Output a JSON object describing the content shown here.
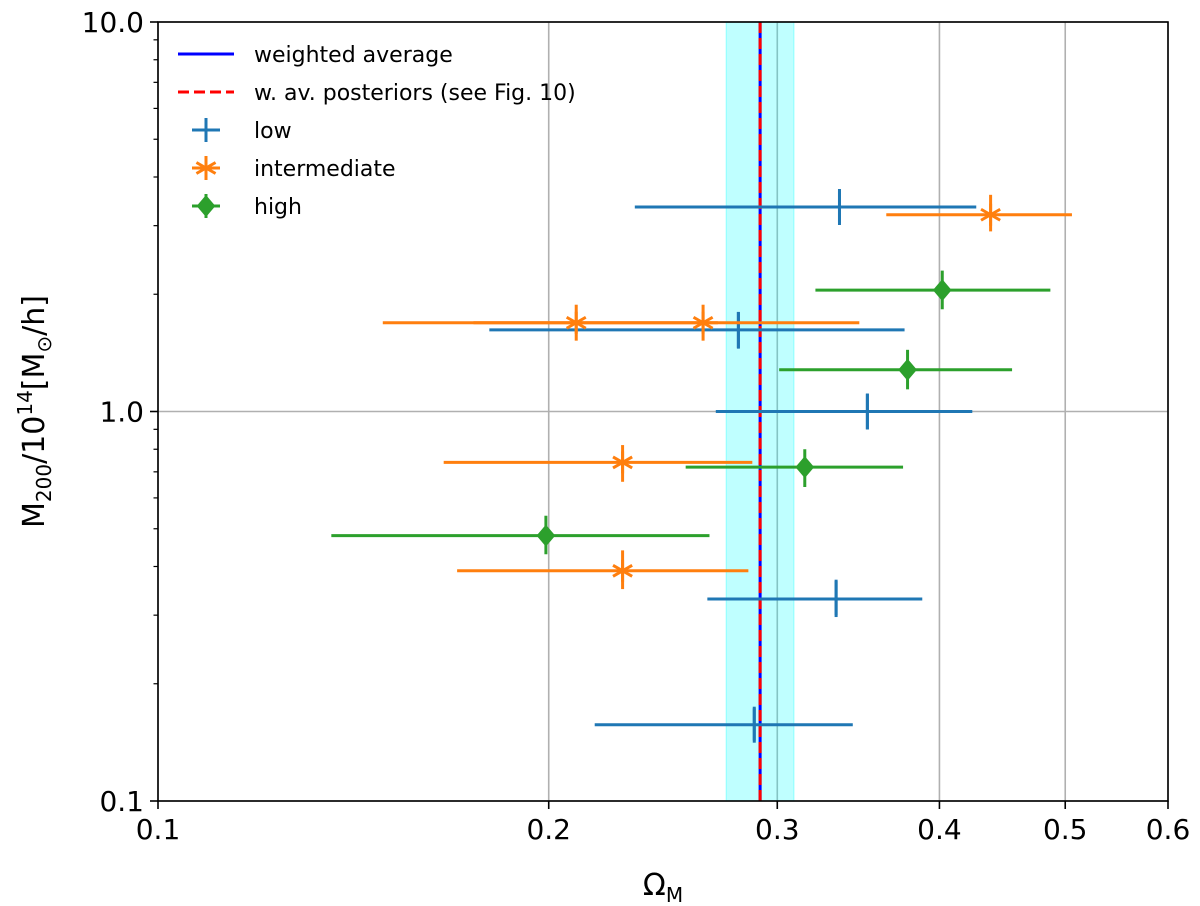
{
  "chart_data": {
    "type": "scatter",
    "title": "",
    "xscale": "log",
    "yscale": "log",
    "xlim": [
      0.1,
      0.6
    ],
    "ylim": [
      0.1,
      10.0
    ],
    "xlabel": "Ω",
    "xlabel_sub": "M",
    "ylabel_main": "M",
    "ylabel_sub": "200",
    "ylabel_mid": "/10",
    "ylabel_sup": "14",
    "ylabel_unit_open": "[M",
    "ylabel_unit_sub": "⊙",
    "ylabel_unit_close": "/h]",
    "grid": true,
    "xticks": [
      {
        "value": 0.1,
        "label": "0.1"
      },
      {
        "value": 0.2,
        "label": "0.2"
      },
      {
        "value": 0.3,
        "label": "0.3"
      },
      {
        "value": 0.4,
        "label": "0.4"
      },
      {
        "value": 0.5,
        "label": "0.5"
      },
      {
        "value": 0.6,
        "label": "0.6"
      }
    ],
    "yticks": [
      {
        "value": 0.1,
        "label": "0.1"
      },
      {
        "value": 1.0,
        "label": "1.0"
      },
      {
        "value": 10.0,
        "label": "10.0"
      }
    ],
    "weighted_average": {
      "value": 0.291,
      "band": [
        0.274,
        0.309
      ]
    },
    "legend_position": "top-left",
    "legend": [
      {
        "label": "weighted average",
        "kind": "solid-line"
      },
      {
        "label": "w. av. posteriors (see Fig. 10)",
        "kind": "dashed-line"
      },
      {
        "label": "low",
        "kind": "plus"
      },
      {
        "label": "intermediate",
        "kind": "star"
      },
      {
        "label": "high",
        "kind": "diamond"
      }
    ],
    "series": [
      {
        "name": "low",
        "marker": "plus",
        "points": [
          {
            "x": 0.335,
            "xerr": [
              0.233,
              0.427
            ],
            "y": 3.35,
            "yerr": [
              3.05,
              3.7
            ]
          },
          {
            "x": 0.28,
            "xerr": [
              0.18,
              0.376
            ],
            "y": 1.62,
            "yerr": [
              1.45,
              1.8
            ]
          },
          {
            "x": 0.352,
            "xerr": [
              0.269,
              0.424
            ],
            "y": 1.0,
            "yerr": [
              0.9,
              1.11
            ]
          },
          {
            "x": 0.333,
            "xerr": [
              0.265,
              0.388
            ],
            "y": 0.33,
            "yerr": [
              0.3,
              0.37
            ]
          },
          {
            "x": 0.288,
            "xerr": [
              0.217,
              0.343
            ],
            "y": 0.157,
            "yerr": [
              0.143,
              0.173
            ]
          }
        ]
      },
      {
        "name": "intermediate",
        "marker": "star",
        "points": [
          {
            "x": 0.438,
            "xerr": [
              0.364,
              0.506
            ],
            "y": 3.2,
            "yerr": [
              2.9,
              3.6
            ]
          },
          {
            "x": 0.21,
            "xerr": [
              0.149,
              0.27
            ],
            "y": 1.69,
            "yerr": [
              1.52,
              1.88
            ]
          },
          {
            "x": 0.263,
            "xerr": [
              0.175,
              0.347
            ],
            "y": 1.69,
            "yerr": [
              1.52,
              1.88
            ]
          },
          {
            "x": 0.228,
            "xerr": [
              0.166,
              0.287
            ],
            "y": 0.74,
            "yerr": [
              0.66,
              0.82
            ]
          },
          {
            "x": 0.228,
            "xerr": [
              0.17,
              0.285
            ],
            "y": 0.39,
            "yerr": [
              0.35,
              0.44
            ]
          }
        ]
      },
      {
        "name": "high",
        "marker": "diamond",
        "points": [
          {
            "x": 0.402,
            "xerr": [
              0.321,
              0.487
            ],
            "y": 2.05,
            "yerr": [
              1.83,
              2.3
            ]
          },
          {
            "x": 0.378,
            "xerr": [
              0.301,
              0.455
            ],
            "y": 1.28,
            "yerr": [
              1.14,
              1.44
            ]
          },
          {
            "x": 0.315,
            "xerr": [
              0.255,
              0.375
            ],
            "y": 0.72,
            "yerr": [
              0.64,
              0.8
            ]
          },
          {
            "x": 0.199,
            "xerr": [
              0.136,
              0.266
            ],
            "y": 0.48,
            "yerr": [
              0.43,
              0.54
            ]
          }
        ]
      }
    ],
    "colors": {
      "low": "#1f77b4",
      "intermediate": "#ff7f0e",
      "high": "#2ca02c",
      "weighted_average": "#0000ff",
      "posterior_average": "#ff0000",
      "band": "#00ffff",
      "grid": "#b0b0b0"
    }
  }
}
